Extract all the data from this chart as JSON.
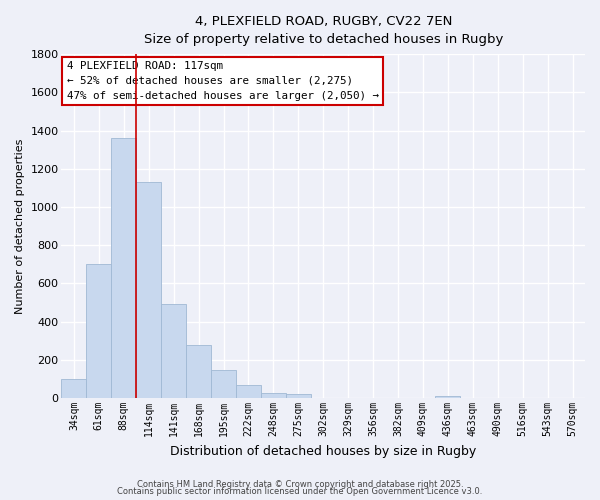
{
  "title": "4, PLEXFIELD ROAD, RUGBY, CV22 7EN",
  "subtitle": "Size of property relative to detached houses in Rugby",
  "xlabel": "Distribution of detached houses by size in Rugby",
  "ylabel": "Number of detached properties",
  "bar_color": "#c8d8ee",
  "bar_edge_color": "#a0b8d4",
  "background_color": "#eef0f8",
  "grid_color": "#ffffff",
  "categories": [
    "34sqm",
    "61sqm",
    "88sqm",
    "114sqm",
    "141sqm",
    "168sqm",
    "195sqm",
    "222sqm",
    "248sqm",
    "275sqm",
    "302sqm",
    "329sqm",
    "356sqm",
    "382sqm",
    "409sqm",
    "436sqm",
    "463sqm",
    "490sqm",
    "516sqm",
    "543sqm",
    "570sqm"
  ],
  "values": [
    100,
    700,
    1360,
    1130,
    495,
    280,
    148,
    70,
    28,
    22,
    0,
    0,
    0,
    0,
    0,
    10,
    0,
    0,
    0,
    0,
    0
  ],
  "ylim": [
    0,
    1800
  ],
  "yticks": [
    0,
    200,
    400,
    600,
    800,
    1000,
    1200,
    1400,
    1600,
    1800
  ],
  "annotation_box_text": "4 PLEXFIELD ROAD: 117sqm\n← 52% of detached houses are smaller (2,275)\n47% of semi-detached houses are larger (2,050) →",
  "annotation_box_color": "#ffffff",
  "annotation_box_edge_color": "#cc0000",
  "property_line_x": 3,
  "property_line_color": "#cc0000",
  "footer_line1": "Contains HM Land Registry data © Crown copyright and database right 2025.",
  "footer_line2": "Contains public sector information licensed under the Open Government Licence v3.0."
}
